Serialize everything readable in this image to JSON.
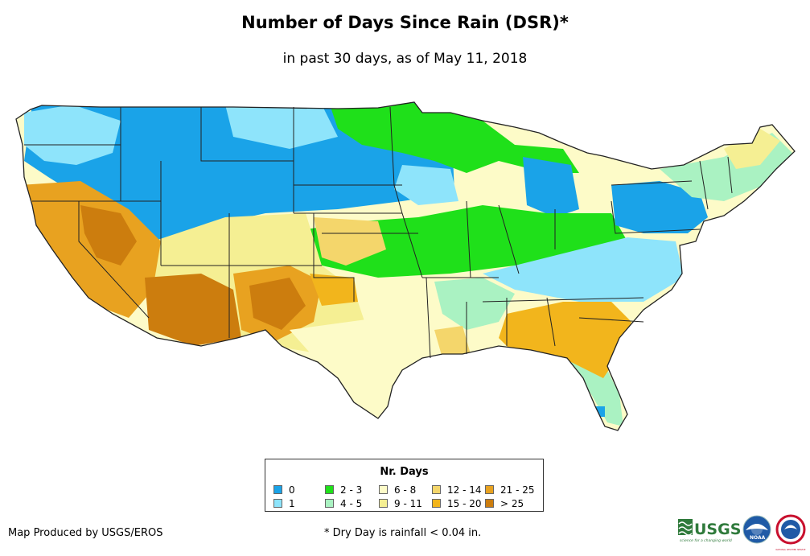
{
  "title": "Number of Days Since Rain (DSR)*",
  "subtitle": "in past 30 days, as of May 11, 2018",
  "legend": {
    "title": "Nr. Days",
    "items": [
      {
        "label": "0",
        "color": "#1aa3e8"
      },
      {
        "label": "1",
        "color": "#8ee4fb"
      },
      {
        "label": "2 - 3",
        "color": "#1fe01a"
      },
      {
        "label": "4 - 5",
        "color": "#aaf2c2"
      },
      {
        "label": "6 - 8",
        "color": "#fdfbc8"
      },
      {
        "label": "9 - 11",
        "color": "#f5ef93"
      },
      {
        "label": "12 - 14",
        "color": "#f4d66b"
      },
      {
        "label": "15 - 20",
        "color": "#f2b51c"
      },
      {
        "label": "21 - 25",
        "color": "#e8a220"
      },
      {
        "label": "> 25",
        "color": "#cc7d0e"
      }
    ]
  },
  "credit": "Map Produced by USGS/EROS",
  "footnote": "* Dry Day is rainfall < 0.04 in.",
  "logos": {
    "usgs": {
      "text": "USGS",
      "tagline": "science for a changing world"
    },
    "noaa": {
      "text": "NOAA"
    },
    "nws": {
      "text": "NATIONAL WEATHER SERVICE"
    }
  }
}
